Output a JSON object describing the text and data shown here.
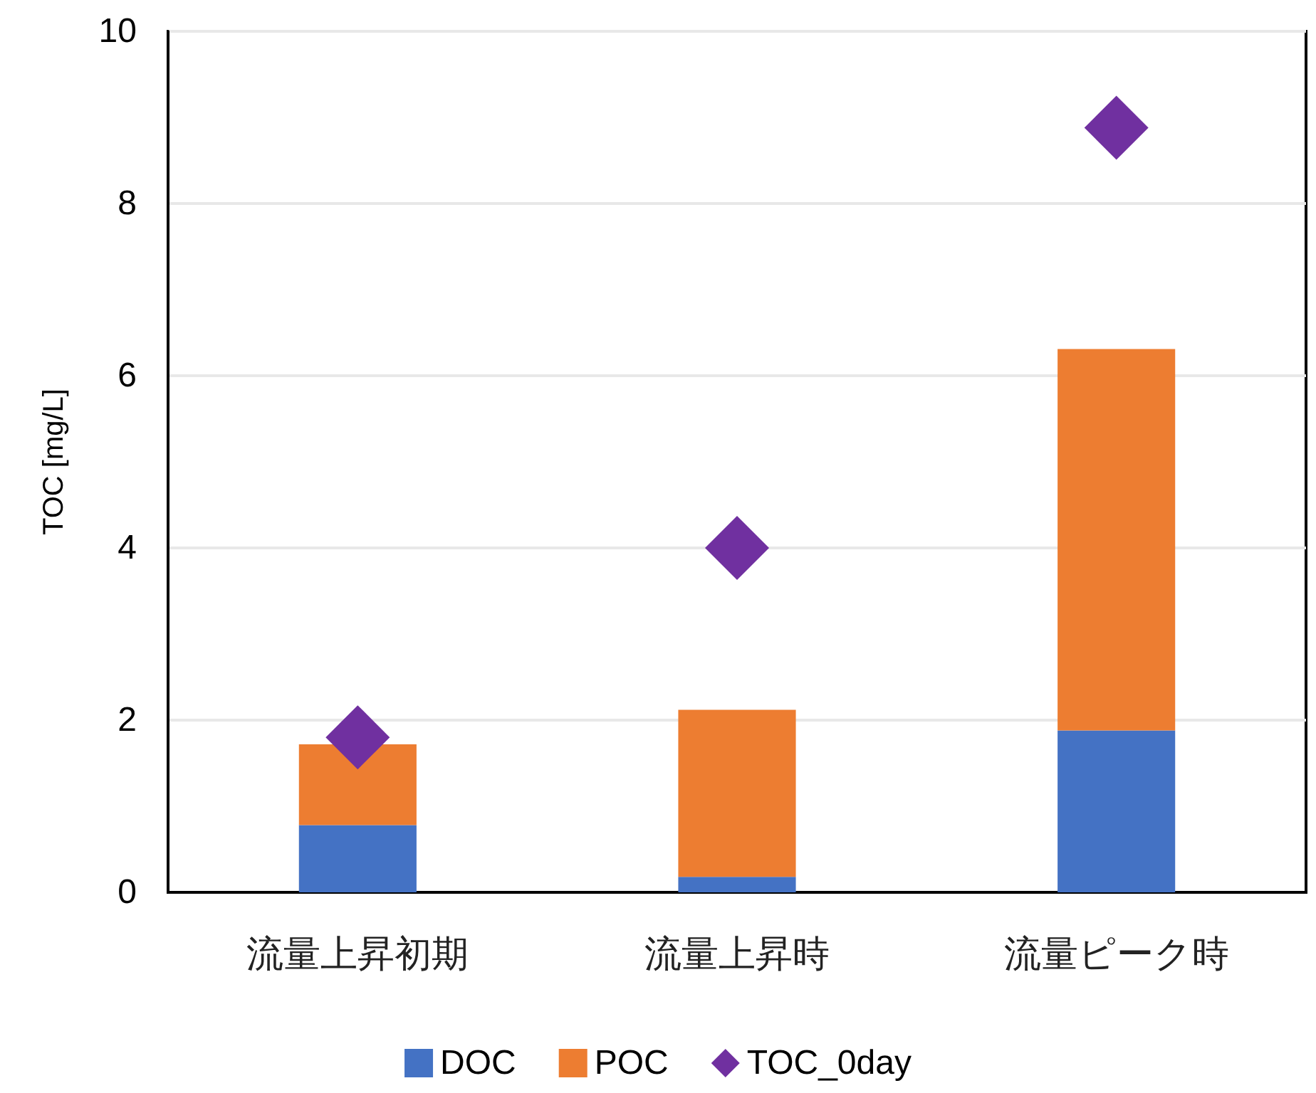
{
  "chart_data": {
    "type": "bar",
    "stacked": true,
    "ylabel": "TOC [mg/L]",
    "categories": [
      "流量上昇初期",
      "流量上昇時",
      "流量ピーク時"
    ],
    "series": [
      {
        "name": "DOC",
        "color": "#4472c4",
        "values": [
          0.78,
          0.18,
          1.88
        ]
      },
      {
        "name": "POC",
        "color": "#ed7d31",
        "values": [
          0.94,
          1.94,
          4.43
        ]
      },
      {
        "name": "TOC_0day",
        "type": "scatter",
        "marker": "diamond",
        "color": "#7030a0",
        "x": [
          "流量上昇初期",
          "流量上昇時",
          "流量ピーク時"
        ],
        "values": [
          1.8,
          4.0,
          8.88
        ]
      }
    ],
    "ylim": [
      0,
      10
    ],
    "yticks": [
      0,
      2,
      4,
      6,
      8,
      10
    ],
    "grid": "y",
    "legend": "bottom"
  }
}
